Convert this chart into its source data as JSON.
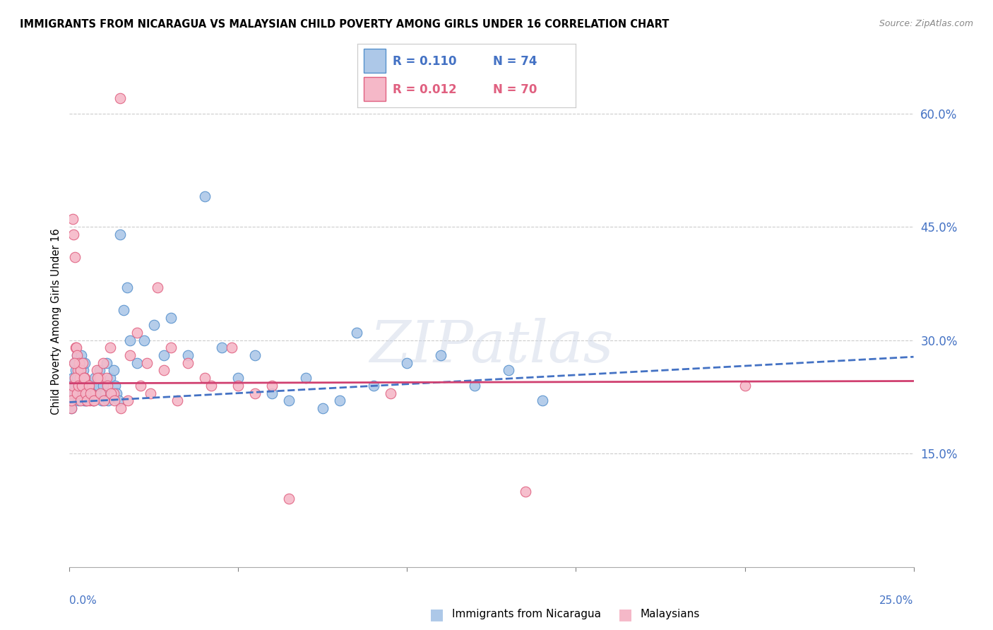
{
  "title": "IMMIGRANTS FROM NICARAGUA VS MALAYSIAN CHILD POVERTY AMONG GIRLS UNDER 16 CORRELATION CHART",
  "source": "Source: ZipAtlas.com",
  "ylabel": "Child Poverty Among Girls Under 16",
  "xlim": [
    0.0,
    25.0
  ],
  "ylim": [
    0.0,
    65.0
  ],
  "right_yticks": [
    15.0,
    30.0,
    45.0,
    60.0
  ],
  "legend1_R": "0.110",
  "legend1_N": "74",
  "legend2_R": "0.012",
  "legend2_N": "70",
  "blue_color": "#adc8e8",
  "pink_color": "#f5b8c8",
  "blue_edge_color": "#5590cc",
  "pink_edge_color": "#e06080",
  "blue_line_color": "#4472c4",
  "pink_line_color": "#d04070",
  "right_axis_color": "#4472c4",
  "watermark": "ZIPatlas",
  "blue_scatter_x": [
    0.05,
    0.08,
    0.1,
    0.12,
    0.15,
    0.18,
    0.2,
    0.22,
    0.25,
    0.28,
    0.3,
    0.32,
    0.35,
    0.38,
    0.4,
    0.42,
    0.45,
    0.48,
    0.5,
    0.55,
    0.6,
    0.65,
    0.7,
    0.75,
    0.8,
    0.85,
    0.9,
    0.95,
    1.0,
    1.05,
    1.1,
    1.15,
    1.2,
    1.25,
    1.3,
    1.35,
    1.4,
    1.45,
    1.5,
    1.6,
    1.7,
    1.8,
    2.0,
    2.2,
    2.5,
    2.8,
    3.0,
    3.5,
    4.0,
    4.5,
    5.0,
    5.5,
    6.0,
    6.5,
    7.0,
    7.5,
    8.0,
    8.5,
    9.0,
    10.0,
    11.0,
    12.0,
    13.0,
    14.0,
    0.06,
    0.09,
    0.13,
    0.16,
    0.23,
    0.27,
    0.33,
    0.37,
    0.43,
    0.47
  ],
  "blue_scatter_y": [
    22,
    23,
    25,
    24,
    27,
    26,
    24,
    28,
    24,
    25,
    26,
    23,
    28,
    24,
    25,
    26,
    27,
    22,
    23,
    24,
    23,
    24,
    22,
    25,
    23,
    24,
    26,
    22,
    24,
    23,
    27,
    22,
    25,
    23,
    26,
    24,
    23,
    22,
    44,
    34,
    37,
    30,
    27,
    30,
    32,
    28,
    33,
    28,
    49,
    29,
    25,
    28,
    23,
    22,
    25,
    21,
    22,
    31,
    24,
    27,
    28,
    24,
    26,
    22,
    21,
    22,
    23,
    24,
    25,
    22,
    23,
    24,
    22,
    23
  ],
  "pink_scatter_x": [
    0.05,
    0.08,
    0.1,
    0.12,
    0.15,
    0.18,
    0.2,
    0.22,
    0.25,
    0.28,
    0.3,
    0.32,
    0.35,
    0.38,
    0.4,
    0.45,
    0.5,
    0.55,
    0.6,
    0.65,
    0.7,
    0.8,
    0.9,
    1.0,
    1.1,
    1.2,
    1.3,
    1.5,
    1.8,
    2.0,
    2.3,
    2.6,
    3.0,
    3.5,
    4.2,
    4.8,
    5.5,
    6.5,
    0.06,
    0.09,
    0.13,
    0.16,
    0.23,
    0.27,
    0.33,
    0.37,
    0.43,
    0.47,
    0.52,
    0.57,
    0.62,
    0.72,
    0.82,
    0.92,
    1.02,
    1.12,
    1.22,
    1.32,
    1.52,
    1.72,
    2.1,
    2.4,
    2.8,
    3.2,
    4.0,
    5.0,
    6.0,
    9.5,
    13.5,
    20.0
  ],
  "pink_scatter_y": [
    21,
    23,
    46,
    44,
    41,
    29,
    29,
    28,
    26,
    27,
    25,
    26,
    24,
    27,
    23,
    25,
    22,
    24,
    22,
    23,
    22,
    26,
    25,
    27,
    25,
    29,
    23,
    62,
    28,
    31,
    27,
    37,
    29,
    27,
    24,
    29,
    23,
    9,
    22,
    24,
    27,
    25,
    23,
    24,
    22,
    24,
    25,
    23,
    22,
    24,
    23,
    22,
    25,
    23,
    22,
    24,
    23,
    22,
    21,
    22,
    24,
    23,
    26,
    22,
    25,
    24,
    24,
    23,
    10,
    24
  ]
}
